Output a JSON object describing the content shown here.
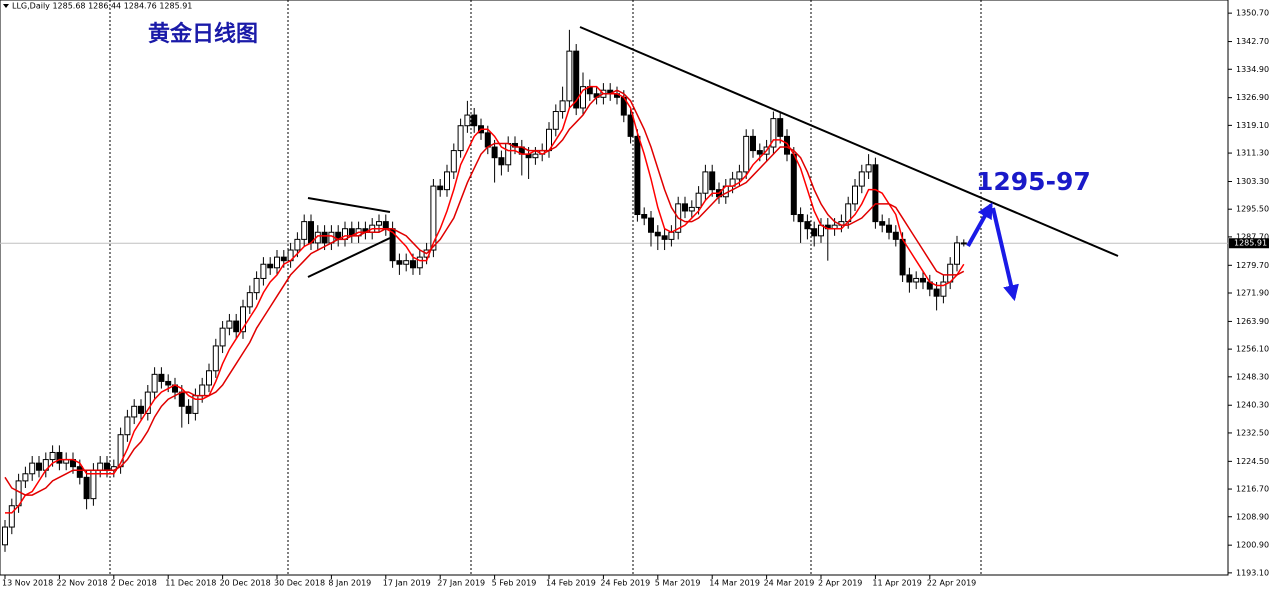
{
  "header": "LLG,Daily 1285.68 1286.44 1284.76 1285.91",
  "title": "黄金日线图",
  "annotation": "1295-97",
  "chart_data": {
    "type": "candlestick",
    "last_price": 1285.91,
    "ylim": [
      1192.5,
      1354.4
    ],
    "yticks": [
      {
        "value": 1350.7,
        "label": "1350.70"
      },
      {
        "value": 1342.7,
        "label": "1342.70"
      },
      {
        "value": 1334.9,
        "label": "1334.90"
      },
      {
        "value": 1326.9,
        "label": "1326.90"
      },
      {
        "value": 1319.1,
        "label": "1319.10"
      },
      {
        "value": 1311.3,
        "label": "1311.30"
      },
      {
        "value": 1303.3,
        "label": "1303.30"
      },
      {
        "value": 1295.5,
        "label": "1295.50"
      },
      {
        "value": 1287.7,
        "label": "1287.70"
      },
      {
        "value": 1279.7,
        "label": "1279.70"
      },
      {
        "value": 1271.9,
        "label": "1271.90"
      },
      {
        "value": 1263.9,
        "label": "1263.90"
      },
      {
        "value": 1256.1,
        "label": "1256.10"
      },
      {
        "value": 1248.3,
        "label": "1248.30"
      },
      {
        "value": 1240.3,
        "label": "1240.30"
      },
      {
        "value": 1232.5,
        "label": "1232.50"
      },
      {
        "value": 1224.5,
        "label": "1224.50"
      },
      {
        "value": 1216.7,
        "label": "1216.70"
      },
      {
        "value": 1208.9,
        "label": "1208.90"
      },
      {
        "value": 1200.9,
        "label": "1200.90"
      },
      {
        "value": 1193.1,
        "label": "1193.10"
      }
    ],
    "categories": [
      "13 Nov 2018",
      null,
      null,
      null,
      null,
      null,
      null,
      null,
      "22 Nov 2018",
      null,
      null,
      null,
      null,
      null,
      null,
      null,
      "2 Dec 2018",
      null,
      null,
      null,
      null,
      null,
      null,
      null,
      "11 Dec 2018",
      null,
      null,
      null,
      null,
      null,
      null,
      null,
      "20 Dec 2018",
      null,
      null,
      null,
      null,
      null,
      null,
      null,
      "30 Dec 2018",
      null,
      null,
      null,
      null,
      null,
      null,
      null,
      "8 Jan 2019",
      null,
      null,
      null,
      null,
      null,
      null,
      null,
      "17 Jan 2019",
      null,
      null,
      null,
      null,
      null,
      null,
      null,
      "27 Jan 2019",
      null,
      null,
      null,
      null,
      null,
      null,
      null,
      "5 Feb 2019",
      null,
      null,
      null,
      null,
      null,
      null,
      null,
      "14 Feb 2019",
      null,
      null,
      null,
      null,
      null,
      null,
      null,
      "24 Feb 2019",
      null,
      null,
      null,
      null,
      null,
      null,
      null,
      "5 Mar 2019",
      null,
      null,
      null,
      null,
      null,
      null,
      null,
      "14 Mar 2019",
      null,
      null,
      null,
      null,
      null,
      null,
      null,
      "24 Mar 2019",
      null,
      null,
      null,
      null,
      null,
      null,
      null,
      "2 Apr 2019",
      null,
      null,
      null,
      null,
      null,
      null,
      null,
      "11 Apr 2019",
      null,
      null,
      null,
      null,
      null,
      null,
      null,
      "22 Apr 2019",
      null,
      null,
      null,
      null,
      null
    ],
    "open": [
      1201,
      1206,
      1212,
      1219,
      1221,
      1224,
      1222,
      1225,
      1227,
      1224,
      1225,
      1223,
      1220,
      1214,
      1222,
      1224,
      1222,
      1223,
      1232,
      1237,
      1240,
      1238,
      1244,
      1249,
      1247,
      1246,
      1244,
      1240,
      1238,
      1243,
      1246,
      1250,
      1257,
      1262,
      1264,
      1261,
      1268,
      1272,
      1276,
      1280,
      1279,
      1282,
      1281,
      1284,
      1287,
      1292,
      1286,
      1289,
      1286,
      1289,
      1287,
      1290,
      1288,
      1290,
      1289,
      1291,
      1292,
      1290,
      1281,
      1280,
      1281,
      1279,
      1282,
      1284,
      1302,
      1301,
      1306,
      1312,
      1319,
      1322,
      1319,
      1317,
      1313,
      1310,
      1308,
      1314,
      1313,
      1311,
      1310,
      1311,
      1312,
      1318,
      1323,
      1326,
      1340,
      1324,
      1330,
      1328,
      1327,
      1329,
      1328,
      1327,
      1322,
      1316,
      1294,
      1293,
      1289,
      1288,
      1287,
      1289,
      1297,
      1295,
      1296,
      1300,
      1306,
      1301,
      1299,
      1302,
      1304,
      1306,
      1316,
      1312,
      1311,
      1313,
      1321,
      1316,
      1311,
      1294,
      1292,
      1290,
      1288,
      1291,
      1290,
      1291,
      1292,
      1297,
      1302,
      1306,
      1308,
      1292,
      1291,
      1289,
      1287,
      1277,
      1275,
      1276,
      1275,
      1273,
      1271,
      1275,
      1280,
      1286
    ],
    "high": [
      1208,
      1214,
      1221,
      1223,
      1226,
      1226,
      1227,
      1229,
      1229,
      1227,
      1227,
      1225,
      1222,
      1224,
      1226,
      1226,
      1225,
      1234,
      1239,
      1242,
      1242,
      1246,
      1251,
      1251,
      1249,
      1248,
      1246,
      1242,
      1245,
      1248,
      1252,
      1259,
      1264,
      1266,
      1266,
      1270,
      1274,
      1278,
      1282,
      1282,
      1284,
      1284,
      1286,
      1289,
      1294,
      1294,
      1291,
      1291,
      1291,
      1291,
      1292,
      1292,
      1292,
      1292,
      1293,
      1294,
      1294,
      1292,
      1283,
      1283,
      1283,
      1284,
      1286,
      1304,
      1304,
      1308,
      1314,
      1321,
      1326,
      1324,
      1321,
      1319,
      1315,
      1312,
      1316,
      1316,
      1315,
      1313,
      1313,
      1314,
      1320,
      1325,
      1330,
      1346,
      1342,
      1334,
      1332,
      1330,
      1331,
      1331,
      1330,
      1329,
      1324,
      1318,
      1296,
      1295,
      1291,
      1290,
      1291,
      1299,
      1299,
      1298,
      1302,
      1308,
      1308,
      1303,
      1304,
      1306,
      1308,
      1318,
      1318,
      1314,
      1315,
      1323,
      1323,
      1318,
      1313,
      1296,
      1294,
      1292,
      1293,
      1293,
      1293,
      1294,
      1299,
      1304,
      1308,
      1311,
      1310,
      1294,
      1293,
      1291,
      1289,
      1279,
      1278,
      1278,
      1277,
      1275,
      1277,
      1282,
      1288,
      1287
    ],
    "low": [
      1199,
      1204,
      1210,
      1217,
      1219,
      1220,
      1220,
      1223,
      1222,
      1222,
      1221,
      1218,
      1211,
      1212,
      1220,
      1220,
      1220,
      1221,
      1230,
      1235,
      1236,
      1236,
      1242,
      1245,
      1244,
      1242,
      1234,
      1235,
      1236,
      1241,
      1244,
      1248,
      1255,
      1260,
      1259,
      1259,
      1266,
      1270,
      1274,
      1277,
      1277,
      1279,
      1279,
      1282,
      1285,
      1284,
      1284,
      1284,
      1284,
      1285,
      1285,
      1286,
      1286,
      1287,
      1287,
      1289,
      1288,
      1279,
      1277,
      1278,
      1277,
      1277,
      1280,
      1282,
      1299,
      1299,
      1304,
      1310,
      1317,
      1317,
      1315,
      1311,
      1303,
      1305,
      1306,
      1311,
      1305,
      1304,
      1308,
      1309,
      1310,
      1316,
      1321,
      1324,
      1322,
      1322,
      1326,
      1325,
      1325,
      1326,
      1325,
      1320,
      1314,
      1292,
      1291,
      1285,
      1284,
      1284,
      1285,
      1287,
      1293,
      1293,
      1294,
      1298,
      1299,
      1297,
      1297,
      1300,
      1302,
      1304,
      1310,
      1309,
      1309,
      1311,
      1314,
      1309,
      1292,
      1286,
      1287,
      1285,
      1286,
      1281,
      1288,
      1289,
      1290,
      1295,
      1300,
      1304,
      1290,
      1289,
      1287,
      1285,
      1275,
      1272,
      1273,
      1273,
      1271,
      1267,
      1269,
      1273,
      1278,
      1285
    ],
    "close": [
      1206,
      1212,
      1219,
      1221,
      1224,
      1222,
      1225,
      1227,
      1224,
      1225,
      1223,
      1220,
      1214,
      1222,
      1224,
      1222,
      1223,
      1232,
      1237,
      1240,
      1238,
      1244,
      1249,
      1247,
      1246,
      1244,
      1240,
      1238,
      1243,
      1246,
      1250,
      1257,
      1262,
      1264,
      1261,
      1268,
      1272,
      1276,
      1280,
      1279,
      1282,
      1281,
      1284,
      1287,
      1292,
      1286,
      1289,
      1286,
      1289,
      1287,
      1290,
      1288,
      1290,
      1289,
      1291,
      1292,
      1290,
      1281,
      1280,
      1281,
      1279,
      1282,
      1284,
      1302,
      1301,
      1306,
      1312,
      1319,
      1322,
      1319,
      1317,
      1313,
      1310,
      1308,
      1314,
      1313,
      1311,
      1310,
      1311,
      1312,
      1318,
      1323,
      1326,
      1340,
      1324,
      1330,
      1328,
      1327,
      1329,
      1328,
      1327,
      1322,
      1316,
      1294,
      1293,
      1289,
      1288,
      1287,
      1289,
      1297,
      1295,
      1296,
      1300,
      1306,
      1301,
      1299,
      1302,
      1304,
      1306,
      1316,
      1312,
      1311,
      1313,
      1321,
      1316,
      1311,
      1294,
      1292,
      1290,
      1288,
      1291,
      1290,
      1291,
      1292,
      1297,
      1302,
      1306,
      1308,
      1292,
      1291,
      1289,
      1287,
      1277,
      1275,
      1276,
      1275,
      1273,
      1271,
      1275,
      1280,
      1286,
      1286
    ],
    "moving_averages": [
      {
        "color": "#ff0000",
        "values": [
          1210,
          1210,
          1212,
          1215,
          1216,
          1219,
          1222,
          1224,
          1225,
          1225,
          1225,
          1224,
          1221,
          1221,
          1221,
          1221,
          1221,
          1224,
          1228,
          1233,
          1236,
          1239,
          1242,
          1244,
          1245,
          1246,
          1245,
          1243,
          1242,
          1242,
          1243,
          1247,
          1252,
          1256,
          1259,
          1262,
          1265,
          1268,
          1272,
          1275,
          1277,
          1280,
          1281,
          1283,
          1285,
          1286,
          1288,
          1288,
          1288,
          1287,
          1288,
          1288,
          1289,
          1289,
          1290,
          1290,
          1290,
          1289,
          1287,
          1285,
          1282,
          1281,
          1281,
          1286,
          1290,
          1295,
          1301,
          1308,
          1312,
          1316,
          1318,
          1318,
          1316,
          1313,
          1312,
          1312,
          1311,
          1311,
          1312,
          1311,
          1312,
          1315,
          1318,
          1324,
          1326,
          1329,
          1330,
          1330,
          1328,
          1328,
          1328,
          1327,
          1324,
          1317,
          1311,
          1304,
          1296,
          1290,
          1289,
          1290,
          1291,
          1293,
          1295,
          1298,
          1300,
          1300,
          1302,
          1302,
          1303,
          1305,
          1308,
          1310,
          1312,
          1315,
          1315,
          1314,
          1311,
          1307,
          1301,
          1295,
          1291,
          1290,
          1290,
          1290,
          1292,
          1294,
          1297,
          1301,
          1301,
          1300,
          1297,
          1294,
          1287,
          1284,
          1281,
          1278,
          1275,
          1274,
          1274,
          1275,
          1277,
          1280
        ]
      },
      {
        "color": "#e00000",
        "values": [
          1220,
          1217,
          1216,
          1215,
          1215,
          1216,
          1217,
          1219,
          1220,
          1221,
          1222,
          1222,
          1222,
          1222,
          1222,
          1222,
          1222,
          1223,
          1225,
          1228,
          1230,
          1233,
          1237,
          1240,
          1242,
          1243,
          1244,
          1244,
          1243,
          1243,
          1243,
          1244,
          1246,
          1249,
          1252,
          1255,
          1258,
          1262,
          1265,
          1268,
          1271,
          1274,
          1277,
          1279,
          1281,
          1283,
          1284,
          1285,
          1286,
          1287,
          1287,
          1288,
          1288,
          1289,
          1289,
          1289,
          1290,
          1290,
          1289,
          1288,
          1286,
          1284,
          1283,
          1285,
          1287,
          1290,
          1293,
          1298,
          1303,
          1307,
          1311,
          1313,
          1314,
          1314,
          1314,
          1313,
          1313,
          1312,
          1312,
          1312,
          1312,
          1313,
          1315,
          1318,
          1320,
          1322,
          1325,
          1327,
          1328,
          1328,
          1329,
          1328,
          1326,
          1322,
          1318,
          1313,
          1307,
          1301,
          1296,
          1293,
          1292,
          1292,
          1293,
          1295,
          1297,
          1299,
          1300,
          1301,
          1302,
          1303,
          1305,
          1307,
          1309,
          1311,
          1313,
          1313,
          1312,
          1310,
          1306,
          1301,
          1297,
          1294,
          1292,
          1291,
          1291,
          1292,
          1293,
          1295,
          1297,
          1297,
          1297,
          1296,
          1293,
          1290,
          1287,
          1284,
          1281,
          1278,
          1277,
          1277,
          1277,
          1278
        ]
      }
    ]
  }
}
